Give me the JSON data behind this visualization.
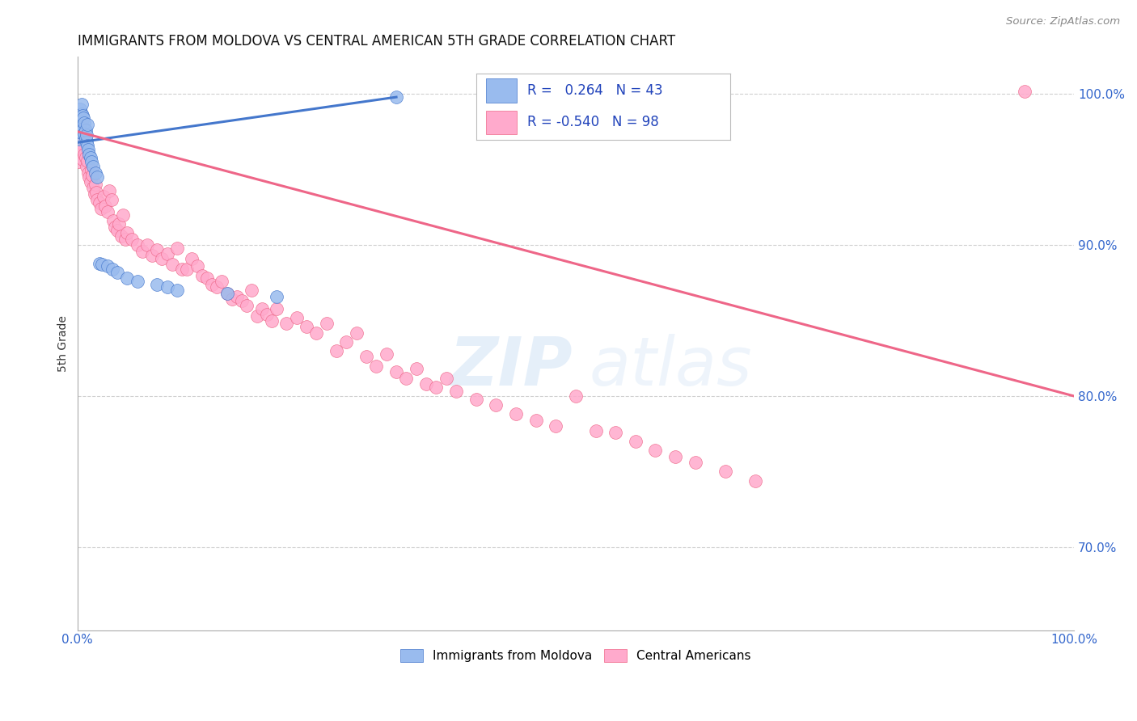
{
  "title": "IMMIGRANTS FROM MOLDOVA VS CENTRAL AMERICAN 5TH GRADE CORRELATION CHART",
  "source": "Source: ZipAtlas.com",
  "ylabel": "5th Grade",
  "xlim": [
    0.0,
    1.0
  ],
  "ylim": [
    0.645,
    1.025
  ],
  "y_ticks": [
    0.7,
    0.8,
    0.9,
    1.0
  ],
  "y_tick_labels": [
    "70.0%",
    "80.0%",
    "90.0%",
    "100.0%"
  ],
  "legend_R_blue": "0.264",
  "legend_N_blue": "43",
  "legend_R_pink": "-0.540",
  "legend_N_pink": "98",
  "blue_color": "#99BBEE",
  "pink_color": "#FFAACC",
  "blue_line_color": "#4477CC",
  "pink_line_color": "#EE6688",
  "blue_line_x": [
    0.001,
    0.32
  ],
  "blue_line_y": [
    0.968,
    0.998
  ],
  "pink_line_x": [
    0.001,
    1.0
  ],
  "pink_line_y": [
    0.975,
    0.8
  ],
  "blue_scatter_x": [
    0.001,
    0.001,
    0.002,
    0.002,
    0.002,
    0.003,
    0.003,
    0.003,
    0.004,
    0.004,
    0.004,
    0.005,
    0.005,
    0.006,
    0.006,
    0.007,
    0.007,
    0.008,
    0.008,
    0.009,
    0.009,
    0.01,
    0.01,
    0.011,
    0.012,
    0.013,
    0.014,
    0.016,
    0.018,
    0.02,
    0.022,
    0.025,
    0.03,
    0.035,
    0.04,
    0.05,
    0.06,
    0.08,
    0.09,
    0.1,
    0.15,
    0.2,
    0.32
  ],
  "blue_scatter_y": [
    0.97,
    0.975,
    0.98,
    0.983,
    0.978,
    0.975,
    0.985,
    0.99,
    0.987,
    0.982,
    0.993,
    0.986,
    0.979,
    0.984,
    0.977,
    0.981,
    0.974,
    0.971,
    0.976,
    0.968,
    0.973,
    0.98,
    0.966,
    0.963,
    0.96,
    0.958,
    0.955,
    0.952,
    0.948,
    0.945,
    0.888,
    0.887,
    0.886,
    0.884,
    0.882,
    0.878,
    0.876,
    0.874,
    0.872,
    0.87,
    0.868,
    0.866,
    0.998
  ],
  "pink_scatter_x": [
    0.001,
    0.002,
    0.003,
    0.004,
    0.005,
    0.006,
    0.007,
    0.008,
    0.009,
    0.01,
    0.011,
    0.012,
    0.013,
    0.014,
    0.015,
    0.016,
    0.017,
    0.018,
    0.019,
    0.02,
    0.022,
    0.024,
    0.026,
    0.028,
    0.03,
    0.032,
    0.034,
    0.036,
    0.038,
    0.04,
    0.042,
    0.044,
    0.046,
    0.048,
    0.05,
    0.055,
    0.06,
    0.065,
    0.07,
    0.075,
    0.08,
    0.085,
    0.09,
    0.095,
    0.1,
    0.105,
    0.11,
    0.115,
    0.12,
    0.125,
    0.13,
    0.135,
    0.14,
    0.145,
    0.15,
    0.155,
    0.16,
    0.165,
    0.17,
    0.175,
    0.18,
    0.185,
    0.19,
    0.195,
    0.2,
    0.21,
    0.22,
    0.23,
    0.24,
    0.25,
    0.26,
    0.27,
    0.28,
    0.29,
    0.3,
    0.31,
    0.32,
    0.33,
    0.34,
    0.35,
    0.36,
    0.37,
    0.38,
    0.4,
    0.42,
    0.44,
    0.46,
    0.48,
    0.5,
    0.52,
    0.54,
    0.56,
    0.58,
    0.6,
    0.62,
    0.65,
    0.68,
    0.95
  ],
  "pink_scatter_y": [
    0.955,
    0.962,
    0.968,
    0.963,
    0.957,
    0.972,
    0.96,
    0.958,
    0.952,
    0.956,
    0.948,
    0.945,
    0.942,
    0.95,
    0.946,
    0.938,
    0.934,
    0.94,
    0.935,
    0.93,
    0.928,
    0.924,
    0.932,
    0.926,
    0.922,
    0.936,
    0.93,
    0.916,
    0.912,
    0.91,
    0.914,
    0.906,
    0.92,
    0.904,
    0.908,
    0.904,
    0.9,
    0.896,
    0.9,
    0.893,
    0.897,
    0.891,
    0.894,
    0.887,
    0.898,
    0.884,
    0.884,
    0.891,
    0.886,
    0.88,
    0.878,
    0.874,
    0.872,
    0.876,
    0.868,
    0.864,
    0.866,
    0.863,
    0.86,
    0.87,
    0.853,
    0.858,
    0.854,
    0.85,
    0.858,
    0.848,
    0.852,
    0.846,
    0.842,
    0.848,
    0.83,
    0.836,
    0.842,
    0.826,
    0.82,
    0.828,
    0.816,
    0.812,
    0.818,
    0.808,
    0.806,
    0.812,
    0.803,
    0.798,
    0.794,
    0.788,
    0.784,
    0.78,
    0.8,
    0.777,
    0.776,
    0.77,
    0.764,
    0.76,
    0.756,
    0.75,
    0.744,
    1.002
  ]
}
